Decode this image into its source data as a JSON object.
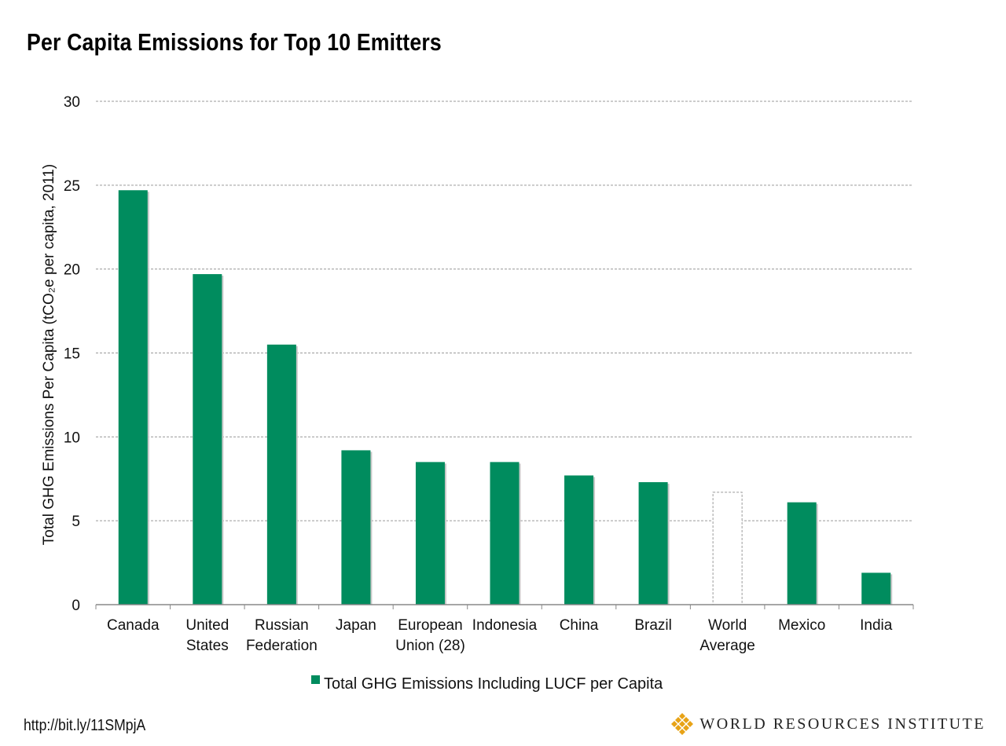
{
  "title": "Per Capita Emissions for Top 10 Emitters",
  "source_link": "http://bit.ly/11SMpjA",
  "logo_text": "WORLD RESOURCES INSTITUTE",
  "colors": {
    "bar": "#008c5e",
    "grid": "#9a9a9a",
    "axis": "#888888",
    "dashed_bar_border": "#999999",
    "logo_gold": "#e8a317"
  },
  "chart_data": {
    "type": "bar",
    "categories": [
      [
        "Canada"
      ],
      [
        "United",
        "States"
      ],
      [
        "Russian",
        "Federation"
      ],
      [
        "Japan"
      ],
      [
        "European",
        "Union (28)"
      ],
      [
        "Indonesia"
      ],
      [
        "China"
      ],
      [
        "Brazil"
      ],
      [
        "World",
        "Average"
      ],
      [
        "Mexico"
      ],
      [
        "India"
      ]
    ],
    "series": [
      {
        "name": "Total GHG Emissions Including LUCF per Capita",
        "values": [
          24.7,
          19.7,
          15.5,
          9.2,
          8.5,
          8.5,
          7.7,
          7.3,
          6.7,
          6.1,
          1.9
        ],
        "styles": [
          "solid",
          "solid",
          "solid",
          "solid",
          "solid",
          "solid",
          "solid",
          "solid",
          "dashed-outline",
          "solid",
          "solid"
        ]
      }
    ],
    "ylabel": "Total GHG Emissions Per Capita (tCO₂e per capita, 2011)",
    "ylim": [
      0,
      30
    ],
    "yticks": [
      "0",
      "5",
      "10",
      "15",
      "20",
      "25",
      "30"
    ],
    "grid": true,
    "grid_style": "dashed",
    "legend_position": "bottom"
  }
}
